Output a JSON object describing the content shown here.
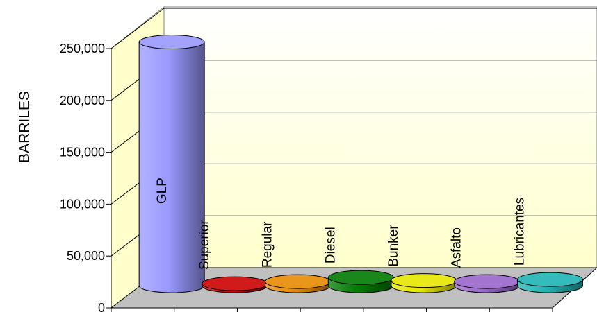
{
  "chart_data": {
    "type": "bar",
    "style": "3d-cylinder",
    "title": "",
    "xlabel": "",
    "ylabel": "BARRILES",
    "ylim": [
      0,
      250000
    ],
    "yticks": [
      "0",
      "50,000",
      "100,000",
      "150,000",
      "200,000",
      "250,000"
    ],
    "ytick_values": [
      0,
      50000,
      100000,
      150000,
      200000,
      250000
    ],
    "grid": true,
    "legend": "none",
    "categories": [
      "GLP",
      "Superior",
      "Regular",
      "Diesel",
      "Bunker",
      "Asfalto",
      "Lubricantes"
    ],
    "values": [
      235000,
      2000,
      4000,
      8000,
      5000,
      4000,
      6000
    ],
    "colors": [
      "#9999ff",
      "#cc0000",
      "#e68a00",
      "#007a00",
      "#e6e600",
      "#9966cc",
      "#1fb3b3"
    ]
  }
}
